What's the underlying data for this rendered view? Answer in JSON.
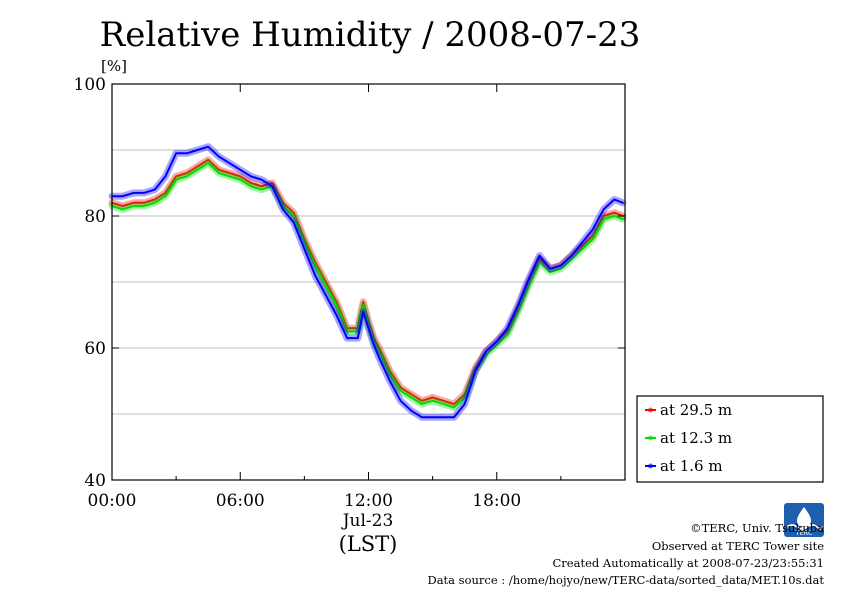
{
  "chart_data": {
    "type": "line",
    "title": "Relative Humidity / 2008-07-23",
    "ylabel": "[%]",
    "xlabel": "(LST)",
    "date_label": "Jul-23",
    "ylim": [
      40,
      100
    ],
    "xlim_hours": [
      0,
      24
    ],
    "yticks": [
      "40",
      "60",
      "80",
      "100"
    ],
    "xticks": [
      "00:00",
      "06:00",
      "12:00",
      "18:00"
    ],
    "grid": true,
    "legend_position": "right-bottom",
    "series": [
      {
        "name": "at 29.5 m",
        "color": "#ff0000",
        "hours": [
          0,
          0.5,
          1,
          1.5,
          2,
          2.5,
          3,
          3.5,
          4,
          4.5,
          5,
          5.5,
          6,
          6.5,
          7,
          7.5,
          8,
          8.5,
          9,
          9.5,
          10,
          10.5,
          11,
          11.5,
          11.75,
          12,
          12.25,
          12.5,
          13,
          13.5,
          14,
          14.5,
          15,
          15.5,
          16,
          16.5,
          17,
          17.5,
          18,
          18.5,
          19,
          19.5,
          20,
          20.5,
          21,
          21.5,
          22,
          22.5,
          23,
          23.5,
          23.9
        ],
        "values": [
          82,
          81.5,
          82,
          82,
          82.5,
          83.5,
          86,
          86.5,
          87.5,
          88.5,
          87,
          86.5,
          86,
          85,
          84.5,
          85,
          82,
          80.5,
          76.5,
          73,
          70,
          67,
          63,
          63,
          67,
          64,
          61.5,
          60,
          56.5,
          54,
          53,
          52,
          52.5,
          52,
          51.5,
          53,
          57,
          59.5,
          61,
          62.5,
          66,
          70,
          73.5,
          72,
          72.5,
          74,
          75.5,
          77,
          80,
          80.5,
          80
        ]
      },
      {
        "name": "at 12.3 m",
        "color": "#00dd00",
        "hours": [
          0,
          0.5,
          1,
          1.5,
          2,
          2.5,
          3,
          3.5,
          4,
          4.5,
          5,
          5.5,
          6,
          6.5,
          7,
          7.5,
          8,
          8.5,
          9,
          9.5,
          10,
          10.5,
          11,
          11.5,
          11.75,
          12,
          12.25,
          12.5,
          13,
          13.5,
          14,
          14.5,
          15,
          15.5,
          16,
          16.5,
          17,
          17.5,
          18,
          18.5,
          19,
          19.5,
          20,
          20.5,
          21,
          21.5,
          22,
          22.5,
          23,
          23.5,
          23.9
        ],
        "values": [
          81.5,
          81,
          81.5,
          81.5,
          82,
          83,
          85.5,
          86,
          87,
          88,
          86.5,
          86,
          85.5,
          84.5,
          84,
          84.5,
          81.5,
          80,
          76,
          72.5,
          69.5,
          66.5,
          62.5,
          62.5,
          66.5,
          63.5,
          61,
          59.5,
          56,
          53.5,
          52.5,
          51.5,
          52,
          51.5,
          51,
          52.5,
          56.5,
          59,
          60.5,
          62,
          65.5,
          69.5,
          73,
          71.5,
          72,
          73.5,
          75,
          76.5,
          79.5,
          80,
          79.5
        ]
      },
      {
        "name": "at 1.6 m",
        "color": "#0000ff",
        "hours": [
          0,
          0.5,
          1,
          1.5,
          2,
          2.5,
          3,
          3.5,
          4,
          4.5,
          5,
          5.5,
          6,
          6.5,
          7,
          7.5,
          8,
          8.5,
          9,
          9.5,
          10,
          10.5,
          11,
          11.5,
          11.75,
          12,
          12.25,
          12.5,
          13,
          13.5,
          14,
          14.5,
          15,
          15.5,
          16,
          16.5,
          17,
          17.5,
          18,
          18.5,
          19,
          19.5,
          20,
          20.5,
          21,
          21.5,
          22,
          22.5,
          23,
          23.5,
          23.9
        ],
        "values": [
          83,
          83,
          83.5,
          83.5,
          84,
          86,
          89.5,
          89.5,
          90,
          90.5,
          89,
          88,
          87,
          86,
          85.5,
          84.5,
          81,
          79,
          75,
          71,
          68,
          65,
          61.5,
          61.5,
          65.5,
          63,
          60.5,
          58.5,
          55,
          52,
          50.5,
          49.5,
          49.5,
          49.5,
          49.5,
          51.5,
          56.5,
          59.5,
          61,
          63,
          66.5,
          70.5,
          74,
          72,
          72.5,
          74,
          76,
          78,
          81,
          82.5,
          82
        ]
      }
    ]
  },
  "credits": {
    "copyright": "©TERC, Univ. Tsukuba",
    "observed": "Observed at TERC Tower site",
    "created": "Created Automatically at 2008-07-23/23:55:31",
    "source": "Data source : /home/hojyo/new/TERC-data/sorted_data/MET.10s.dat"
  },
  "logo": {
    "text": "TERC",
    "color": "#1e5fb0"
  }
}
